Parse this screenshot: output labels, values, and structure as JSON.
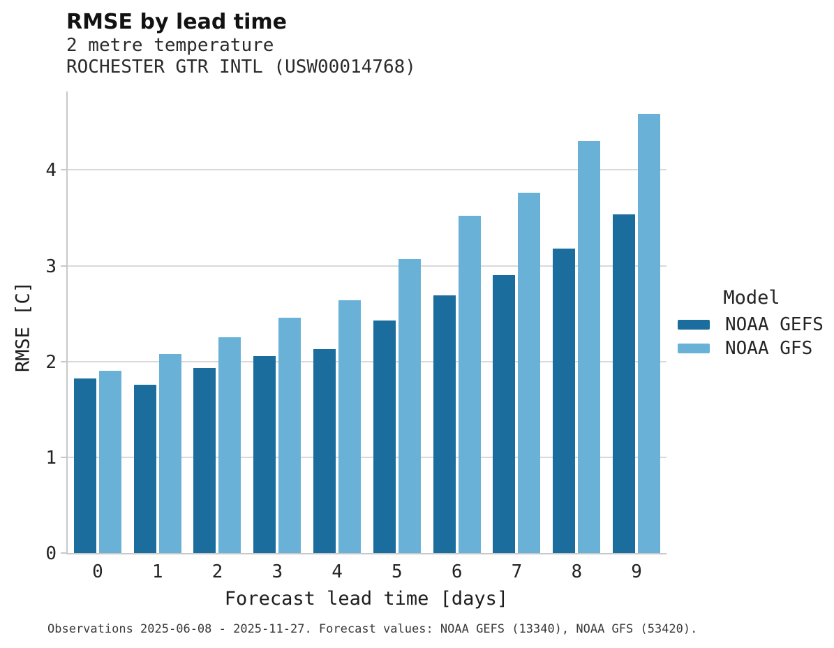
{
  "header": {
    "title": "RMSE by lead time",
    "subtitle1": "2 metre temperature",
    "subtitle2": "ROCHESTER GTR INTL (USW00014768)"
  },
  "legend": {
    "title": "Model",
    "entries": [
      {
        "label": "NOAA GEFS",
        "color": "#1a6d9c"
      },
      {
        "label": "NOAA GFS",
        "color": "#6ab1d8"
      }
    ]
  },
  "footer": {
    "caption": "Observations 2025-06-08 - 2025-11-27. Forecast values: NOAA GEFS (13340), NOAA GFS (53420)."
  },
  "chart_data": {
    "type": "bar",
    "title": "RMSE by lead time",
    "subtitle": [
      "2 metre temperature",
      "ROCHESTER GTR INTL (USW00014768)"
    ],
    "categories": [
      "0",
      "1",
      "2",
      "3",
      "4",
      "5",
      "6",
      "7",
      "8",
      "9"
    ],
    "series": [
      {
        "name": "NOAA GEFS",
        "color": "#1a6d9c",
        "values": [
          1.82,
          1.76,
          1.93,
          2.06,
          2.13,
          2.43,
          2.69,
          2.9,
          3.18,
          3.54
        ]
      },
      {
        "name": "NOAA GFS",
        "color": "#6ab1d8",
        "values": [
          1.9,
          2.08,
          2.25,
          2.46,
          2.64,
          3.07,
          3.52,
          3.76,
          4.3,
          4.59
        ]
      }
    ],
    "xlabel": "Forecast lead time [days]",
    "ylabel": "RMSE [C]",
    "ylim": [
      0,
      4.82
    ],
    "yticks": [
      0,
      1,
      2,
      3,
      4
    ],
    "grid": true,
    "legend_position": "right",
    "grid_color": "#d9d9d9",
    "spine_color": "#c8c8c8"
  }
}
